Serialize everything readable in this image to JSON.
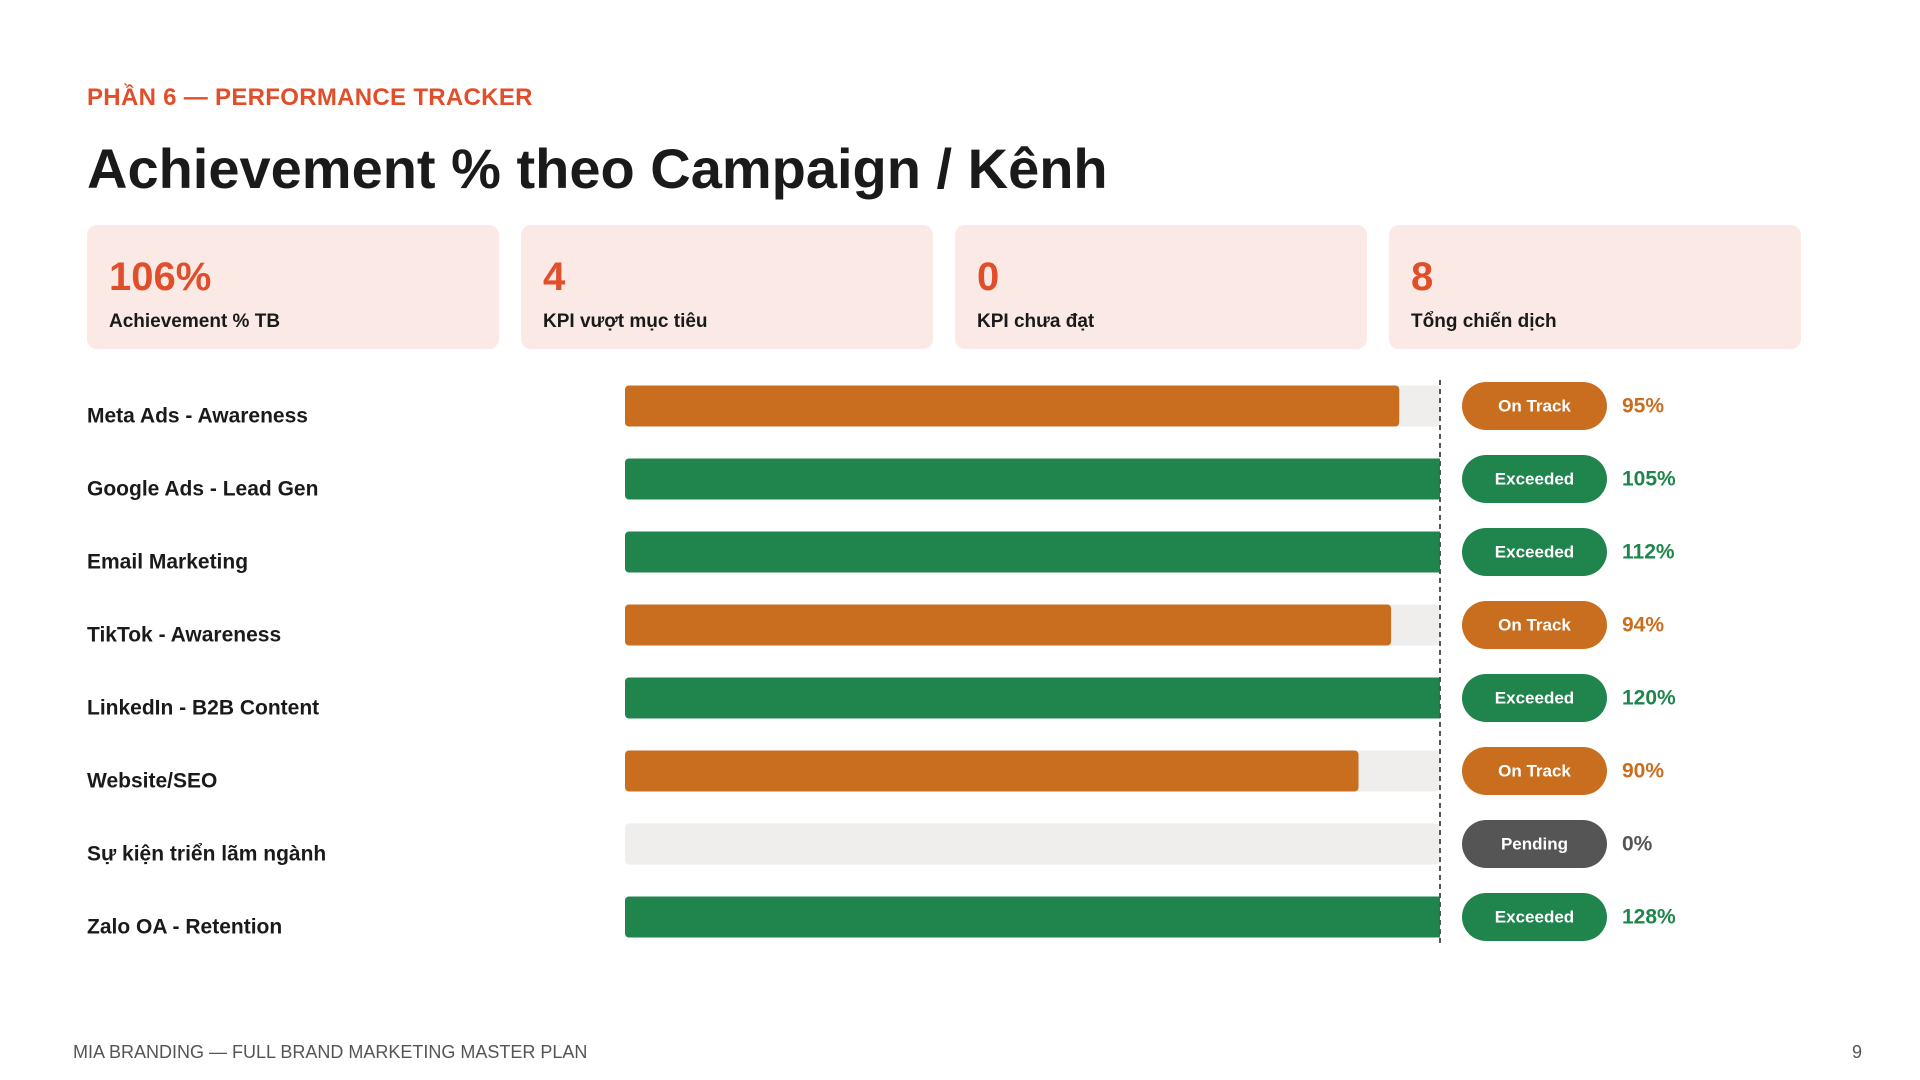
{
  "header": {
    "section": "PHẦN 6 — PERFORMANCE TRACKER",
    "title": "Achievement % theo Campaign / Kênh"
  },
  "kpis": [
    {
      "value": "106%",
      "label": "Achievement % TB"
    },
    {
      "value": "4",
      "label": "KPI vượt mục tiêu"
    },
    {
      "value": "0",
      "label": "KPI chưa đạt"
    },
    {
      "value": "8",
      "label": "Tổng chiến dịch"
    }
  ],
  "chart_data": {
    "type": "bar",
    "orientation": "horizontal",
    "categories": [
      "Meta Ads - Awareness",
      "Google Ads - Lead Gen",
      "Email Marketing",
      "TikTok - Awareness",
      "LinkedIn - B2B Content",
      "Website/SEO",
      "Sự kiện triển lãm ngành",
      "Zalo OA - Retention"
    ],
    "values": [
      95,
      105,
      112,
      94,
      120,
      90,
      0,
      128
    ],
    "value_labels": [
      "95%",
      "105%",
      "112%",
      "94%",
      "120%",
      "90%",
      "0%",
      "128%"
    ],
    "status": [
      "On Track",
      "Exceeded",
      "Exceeded",
      "On Track",
      "Exceeded",
      "On Track",
      "Pending",
      "Exceeded"
    ],
    "colors": [
      "#c96e1f",
      "#1f854c",
      "#1f854c",
      "#c96e1f",
      "#1f854c",
      "#c96e1f",
      "#555555",
      "#1f854c"
    ],
    "xlim": [
      0,
      100
    ],
    "target": 100
  },
  "footer": {
    "text": "MIA BRANDING — FULL BRAND MARKETING MASTER PLAN",
    "page": "9"
  }
}
